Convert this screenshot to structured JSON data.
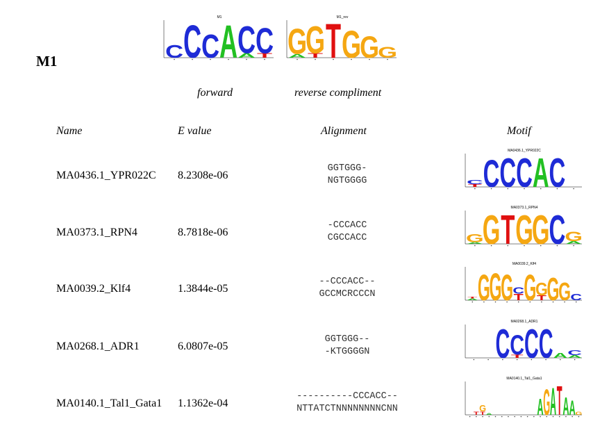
{
  "title": "M1",
  "colors": {
    "A": "#22c022",
    "C": "#1e2bd6",
    "G": "#f5a712",
    "T": "#e01010"
  },
  "top_logos": [
    {
      "title": "M1",
      "letters": [
        {
          "s": [
            [
              "C",
              0.35
            ]
          ]
        },
        {
          "s": [
            [
              "C",
              0.9
            ]
          ]
        },
        {
          "s": [
            [
              "C",
              0.65
            ]
          ]
        },
        {
          "s": [
            [
              "A",
              0.9
            ]
          ]
        },
        {
          "s": [
            [
              "C",
              0.75
            ],
            [
              "A",
              0.12
            ]
          ]
        },
        {
          "s": [
            [
              "C",
              0.7
            ],
            [
              "T",
              0.12
            ]
          ]
        }
      ]
    },
    {
      "title": "M1_rev",
      "letters": [
        {
          "s": [
            [
              "G",
              0.7
            ],
            [
              "A",
              0.1
            ]
          ]
        },
        {
          "s": [
            [
              "G",
              0.75
            ],
            [
              "T",
              0.12
            ]
          ]
        },
        {
          "s": [
            [
              "T",
              0.95
            ]
          ]
        },
        {
          "s": [
            [
              "G",
              0.75
            ]
          ]
        },
        {
          "s": [
            [
              "G",
              0.6
            ]
          ]
        },
        {
          "s": [
            [
              "G",
              0.3
            ]
          ]
        }
      ]
    }
  ],
  "labels": {
    "forward": "forward",
    "reverse": "reverse compliment"
  },
  "headers": {
    "name": "Name",
    "evalue": "E value",
    "alignment": "Alignment",
    "motif": "Motif"
  },
  "rows": [
    {
      "name": "MA0436.1_YPR022C",
      "evalue": "8.2308e-06",
      "align1": "GGTGGG-",
      "align2": "NGTGGGG",
      "logo_title": "MA0436.1_YPR022C",
      "letters": [
        {
          "s": [
            [
              "C",
              0.12
            ],
            [
              "T",
              0.08
            ]
          ]
        },
        {
          "s": [
            [
              "C",
              0.85
            ]
          ]
        },
        {
          "s": [
            [
              "C",
              0.9
            ]
          ]
        },
        {
          "s": [
            [
              "C",
              0.9
            ]
          ]
        },
        {
          "s": [
            [
              "A",
              0.9
            ]
          ]
        },
        {
          "s": [
            [
              "C",
              0.9
            ]
          ]
        },
        {
          "s": []
        }
      ]
    },
    {
      "name": "MA0373.1_RPN4",
      "evalue": "8.7818e-06",
      "align1": "-CCCACC",
      "align2": "CGCCACC",
      "logo_title": "MA0373.1_RPN4",
      "letters": [
        {
          "s": [
            [
              "G",
              0.25
            ],
            [
              "A",
              0.05
            ]
          ]
        },
        {
          "s": [
            [
              "G",
              0.9
            ]
          ]
        },
        {
          "s": [
            [
              "T",
              0.9
            ]
          ]
        },
        {
          "s": [
            [
              "G",
              0.9
            ]
          ]
        },
        {
          "s": [
            [
              "G",
              0.9
            ]
          ]
        },
        {
          "s": [
            [
              "C",
              0.9
            ]
          ]
        },
        {
          "s": [
            [
              "G",
              0.3
            ],
            [
              "A",
              0.08
            ]
          ]
        }
      ]
    },
    {
      "name": "MA0039.2_Klf4",
      "evalue": "1.3844e-05",
      "align1": "--CCCACC--",
      "align2": "GCCMCRCCCN",
      "logo_title": "MA0039.2_Klf4",
      "letters": [
        {
          "s": [
            [
              "A",
              0.05
            ],
            [
              "T",
              0.05
            ]
          ]
        },
        {
          "s": [
            [
              "G",
              0.8
            ]
          ]
        },
        {
          "s": [
            [
              "G",
              0.85
            ]
          ]
        },
        {
          "s": [
            [
              "G",
              0.8
            ]
          ]
        },
        {
          "s": [
            [
              "T",
              0.2
            ],
            [
              "C",
              0.2
            ]
          ]
        },
        {
          "s": [
            [
              "G",
              0.8
            ]
          ]
        },
        {
          "s": [
            [
              "G",
              0.4
            ],
            [
              "T",
              0.15
            ]
          ]
        },
        {
          "s": [
            [
              "G",
              0.7
            ]
          ]
        },
        {
          "s": [
            [
              "G",
              0.55
            ]
          ]
        },
        {
          "s": [
            [
              "C",
              0.2
            ]
          ]
        }
      ]
    },
    {
      "name": "MA0268.1_ADR1",
      "evalue": "6.0807e-05",
      "align1": "GGTGGG--",
      "align2": "-KTGGGGN",
      "logo_title": "MA0268.1_ADR1",
      "letters": [
        {
          "s": []
        },
        {
          "s": []
        },
        {
          "s": [
            [
              "C",
              0.9
            ]
          ]
        },
        {
          "s": [
            [
              "C",
              0.6
            ],
            [
              "T",
              0.1
            ]
          ]
        },
        {
          "s": [
            [
              "C",
              0.9
            ]
          ]
        },
        {
          "s": [
            [
              "C",
              0.9
            ]
          ]
        },
        {
          "s": [
            [
              "A",
              0.15
            ]
          ]
        },
        {
          "s": [
            [
              "C",
              0.15
            ],
            [
              "A",
              0.08
            ]
          ]
        }
      ]
    },
    {
      "name": "MA0140.1_Tal1_Gata1",
      "evalue": "1.1362e-04",
      "align1": "----------CCCACC--",
      "align2": "NTTATCTNNNNNNNNCNN",
      "logo_title": "MA0140.1_Tal1_Gata1",
      "letters": [
        {
          "s": []
        },
        {
          "s": [
            [
              "T",
              0.1
            ]
          ]
        },
        {
          "s": [
            [
              "G",
              0.2
            ],
            [
              "T",
              0.1
            ]
          ]
        },
        {
          "s": [
            [
              "A",
              0.05
            ]
          ]
        },
        {
          "s": []
        },
        {
          "s": []
        },
        {
          "s": []
        },
        {
          "s": []
        },
        {
          "s": []
        },
        {
          "s": []
        },
        {
          "s": []
        },
        {
          "s": [
            [
              "A",
              0.5
            ]
          ]
        },
        {
          "s": [
            [
              "G",
              0.8
            ]
          ]
        },
        {
          "s": [
            [
              "A",
              0.85
            ]
          ]
        },
        {
          "s": [
            [
              "T",
              0.9
            ]
          ]
        },
        {
          "s": [
            [
              "A",
              0.55
            ]
          ]
        },
        {
          "s": [
            [
              "A",
              0.45
            ]
          ]
        },
        {
          "s": [
            [
              "G",
              0.1
            ]
          ]
        }
      ]
    }
  ]
}
